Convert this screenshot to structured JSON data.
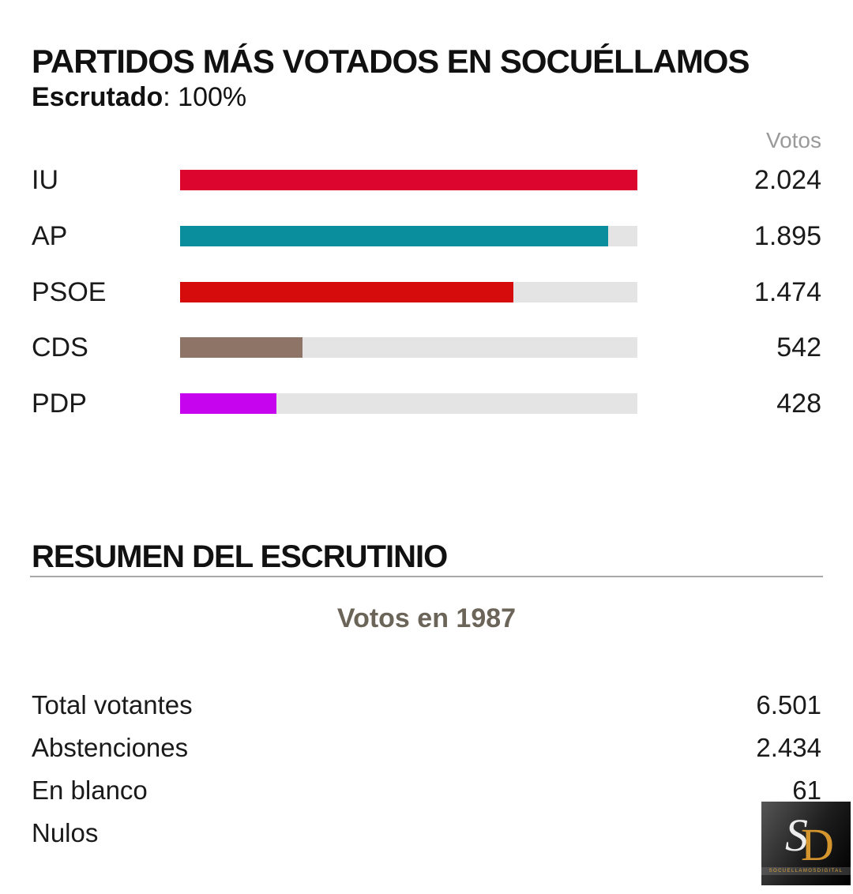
{
  "page": {
    "title": "PARTIDOS MÁS VOTADOS EN SOCUÉLLAMOS",
    "scrutiny_label": "Escrutado",
    "scrutiny_value": ": 100%"
  },
  "chart_data": {
    "type": "bar",
    "orientation": "horizontal",
    "title": "PARTIDOS MÁS VOTADOS EN SOCUÉLLAMOS",
    "value_header": "Votos",
    "categories": [
      "IU",
      "AP",
      "PSOE",
      "CDS",
      "PDP"
    ],
    "values": [
      2024,
      1895,
      1474,
      542,
      428
    ],
    "display_values": [
      "2.024",
      "1.895",
      "1.474",
      "542",
      "428"
    ],
    "max_value": 2024,
    "bar_colors": [
      "#db052d",
      "#0a8e9e",
      "#d60b0b",
      "#8d7466",
      "#c605ee"
    ],
    "track_color": "#e4e4e4",
    "legend_position": "none",
    "grid": false
  },
  "summary": {
    "heading": "RESUMEN DEL ESCRUTINIO",
    "subheading": "Votos en 1987",
    "rows": [
      {
        "label": "Total votantes",
        "value": "6.501"
      },
      {
        "label": "Abstenciones",
        "value": "2.434"
      },
      {
        "label": "En blanco",
        "value": "61"
      },
      {
        "label": "Nulos",
        "value": ""
      }
    ]
  },
  "logo": {
    "initial_s": "S",
    "initial_d": "D",
    "caption": "SOCUELLAMOSDIGITAL",
    "gold": "#d4952f",
    "silver": "#ededed",
    "background": "#141414"
  }
}
